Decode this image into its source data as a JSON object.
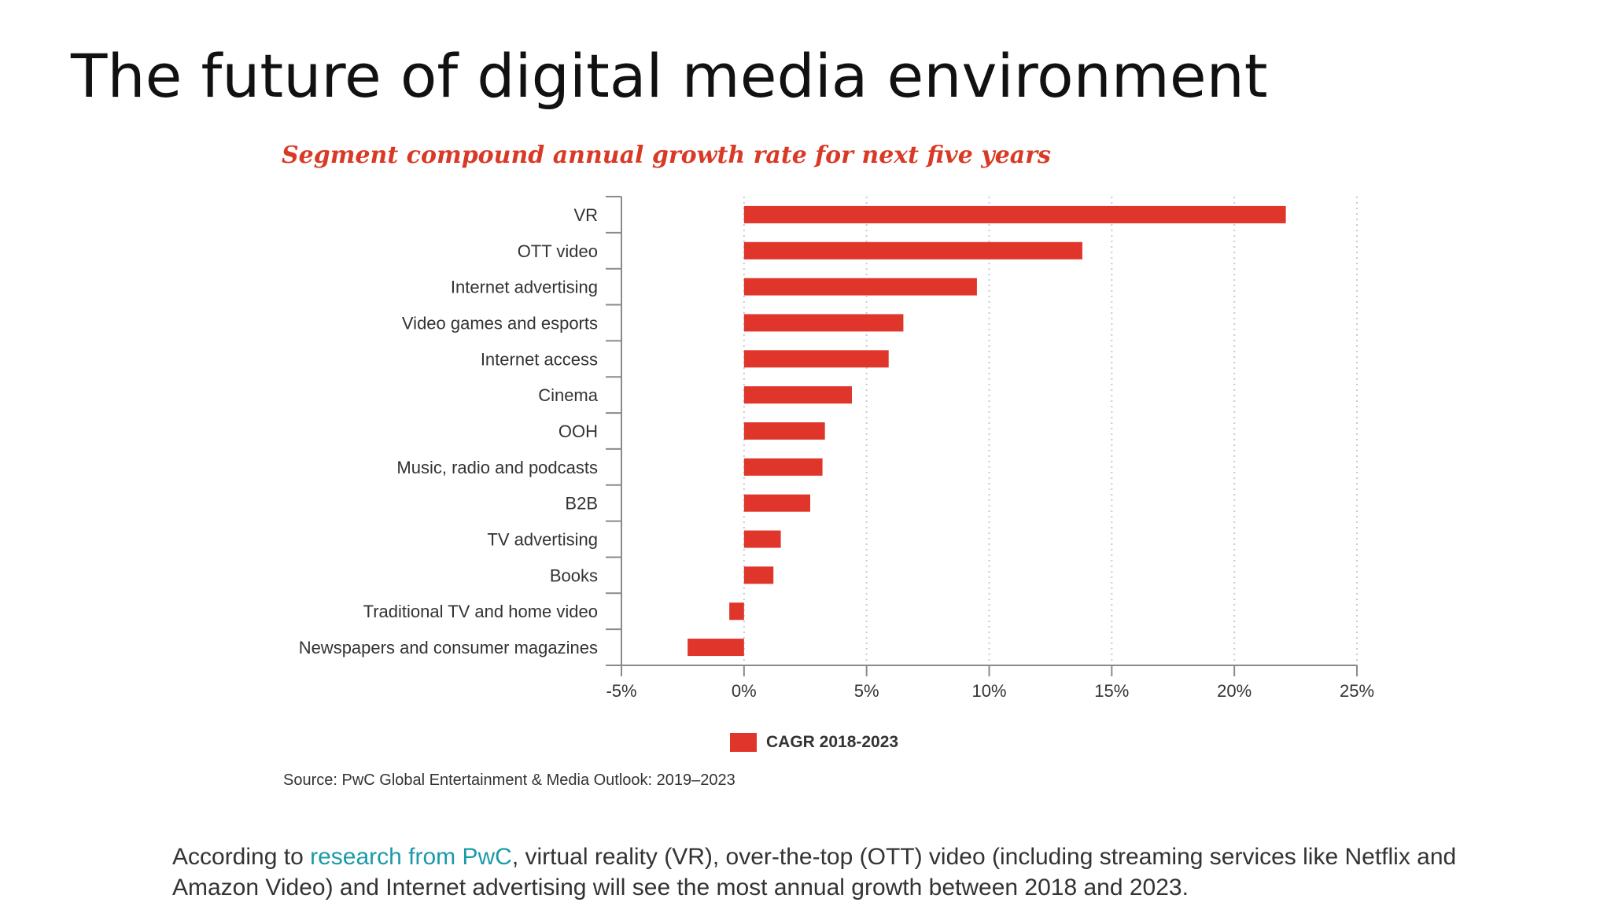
{
  "slide": {
    "title": "The future of digital media environment"
  },
  "chart_data": {
    "type": "bar",
    "orientation": "horizontal",
    "title": "Segment compound annual growth rate for next five years",
    "categories": [
      "VR",
      "OTT video",
      "Internet advertising",
      "Video games and esports",
      "Internet access",
      "Cinema",
      "OOH",
      "Music, radio and podcasts",
      "B2B",
      "TV advertising",
      "Books",
      "Traditional TV and home video",
      "Newspapers and consumer magazines"
    ],
    "series": [
      {
        "name": "CAGR 2018-2023",
        "values": [
          22.1,
          13.8,
          9.5,
          6.5,
          5.9,
          4.4,
          3.3,
          3.2,
          2.7,
          1.5,
          1.2,
          -0.6,
          -2.3
        ]
      }
    ],
    "xlim": [
      -5,
      25
    ],
    "x_ticks": [
      -5,
      0,
      5,
      10,
      15,
      20,
      25
    ],
    "x_tick_labels": [
      "-5%",
      "0%",
      "5%",
      "10%",
      "15%",
      "20%",
      "25%"
    ],
    "grid": "vertical dotted",
    "legend": "bottom-center",
    "bar_color": "#e0352a",
    "source": "Source: PwC Global Entertainment & Media Outlook: 2019–2023"
  },
  "caption": {
    "before_link": "According to ",
    "link_text": "research from PwC",
    "after_link": ", virtual reality (VR), over-the-top (OTT) video (including streaming services like Netflix and Amazon Video) and Internet advertising will see the most annual growth between 2018 and 2023."
  },
  "colors": {
    "title_red": "#d93a26",
    "link_teal": "#1a9aa8"
  }
}
